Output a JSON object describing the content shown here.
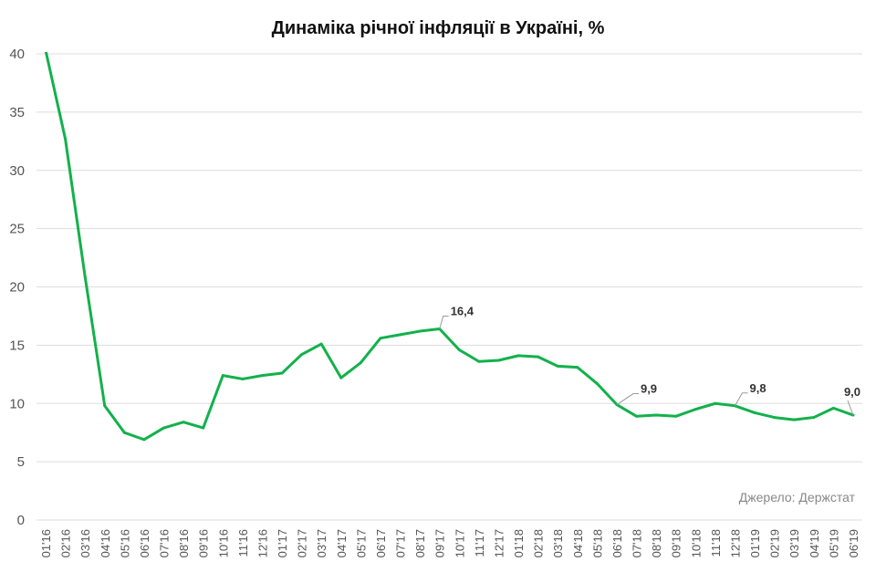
{
  "chart_data": {
    "type": "line",
    "title": "Динаміка річної інфляції в Україні, %",
    "source": "Джерело: Держстат",
    "ylim": [
      0,
      40
    ],
    "yticks": [
      0,
      5,
      10,
      15,
      20,
      25,
      30,
      35,
      40
    ],
    "grid": true,
    "color": "#13b14b",
    "categories": [
      "01'16",
      "02'16",
      "03'16",
      "04'16",
      "05'16",
      "06'16",
      "07'16",
      "08'16",
      "09'16",
      "10'16",
      "11'16",
      "12'16",
      "01'17",
      "02'17",
      "03'17",
      "04'17",
      "05'17",
      "06'17",
      "07'17",
      "08'17",
      "09'17",
      "10'17",
      "11'17",
      "12'17",
      "01'18",
      "02'18",
      "03'18",
      "04'18",
      "05'18",
      "06'18",
      "07'18",
      "08'18",
      "09'18",
      "10'18",
      "11'18",
      "12'18",
      "01'19",
      "02'19",
      "03'19",
      "04'19",
      "05'19",
      "06'19"
    ],
    "values": [
      40.3,
      32.7,
      20.9,
      9.8,
      7.5,
      6.9,
      7.9,
      8.4,
      7.9,
      12.4,
      12.1,
      12.4,
      12.6,
      14.2,
      15.1,
      12.2,
      13.5,
      15.6,
      15.9,
      16.2,
      16.4,
      14.6,
      13.6,
      13.7,
      14.1,
      14.0,
      13.2,
      13.1,
      11.7,
      9.9,
      8.9,
      9.0,
      8.9,
      9.5,
      10.0,
      9.8,
      9.2,
      8.8,
      8.6,
      8.8,
      9.6,
      9.0
    ],
    "annotations": [
      {
        "category": "09'17",
        "label": "16,4"
      },
      {
        "category": "06'18",
        "label": "9,9"
      },
      {
        "category": "12'18",
        "label": "9,8"
      },
      {
        "category": "06'19",
        "label": "9,0"
      }
    ]
  }
}
